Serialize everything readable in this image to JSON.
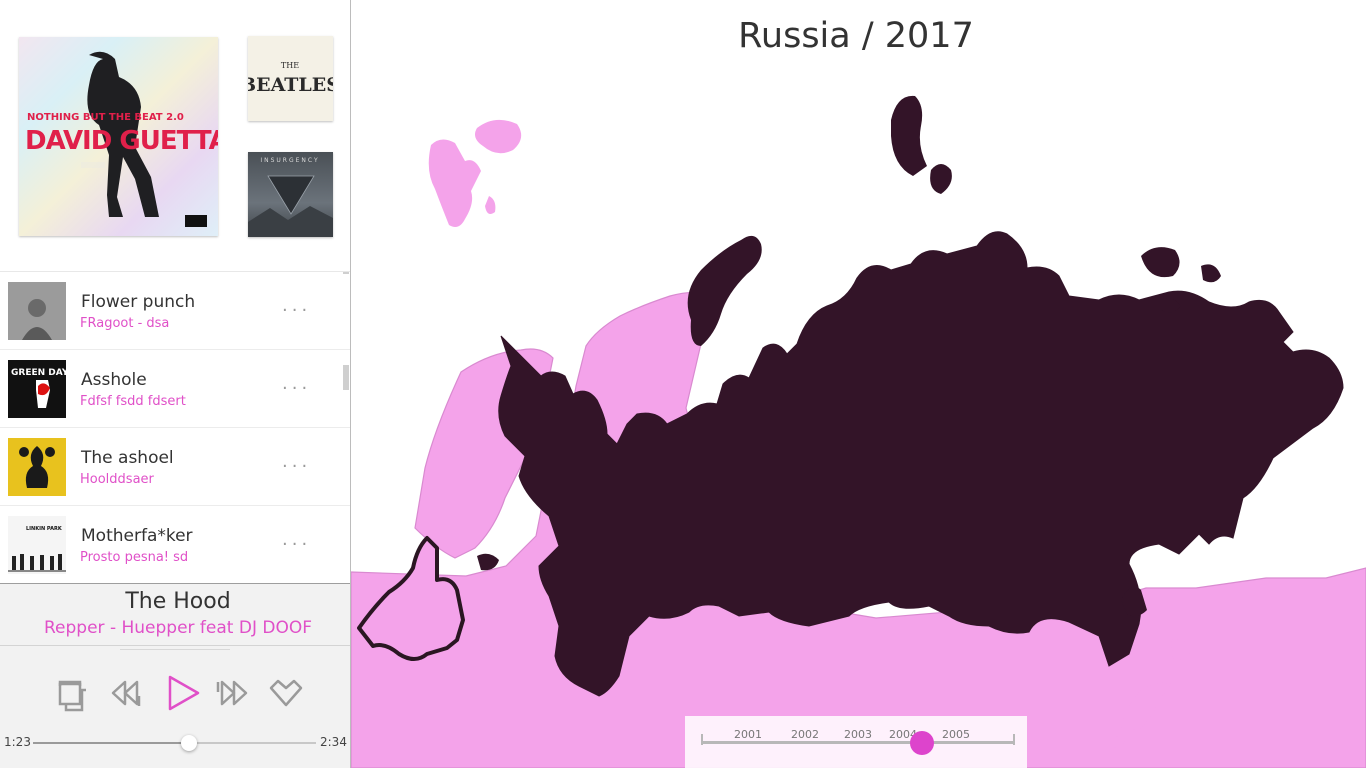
{
  "albums": {
    "main": {
      "title": "DAVID GUETTA",
      "subtitle": "NOTHING BUT THE BEAT 2.0"
    },
    "beatles": {
      "line1": "THE",
      "line2": "BEATLES"
    },
    "insurgency": {
      "title": "INSURGENCY"
    }
  },
  "tracks": [
    {
      "title": "Flower punch",
      "subtitle": "FRagoot - dsa",
      "more": "···"
    },
    {
      "title": "Asshole",
      "subtitle": "Fdfsf fsdd fdsert",
      "more": "···",
      "thumb_text": "GREEN DAY"
    },
    {
      "title": "The ashoel",
      "subtitle": "Hoolddsaer",
      "more": "···"
    },
    {
      "title": "Motherfa*ker",
      "subtitle": "Prosto pesna! sd",
      "more": "···",
      "thumb_text": "LINKIN PARK"
    }
  ],
  "player": {
    "title": "The Hood",
    "artist": "Repper - Huepper feat DJ DOOF",
    "current_time": "1:23",
    "total_time": "2:34",
    "progress": 0.55,
    "controls": [
      "repeat-icon",
      "rewind-icon",
      "play-icon",
      "fast-forward-icon",
      "heart-icon"
    ]
  },
  "map": {
    "title": "Russia / 2017",
    "colors": {
      "selected": "#331428",
      "land": "#f4a3ea",
      "border": "#d98ad0",
      "outline": "#2a1622"
    },
    "timeline": {
      "years": [
        "2001",
        "2002",
        "2003",
        "2004",
        "2005"
      ],
      "selected_position": 0.704
    }
  },
  "colors": {
    "accent": "#e050c8",
    "text": "#333333"
  }
}
